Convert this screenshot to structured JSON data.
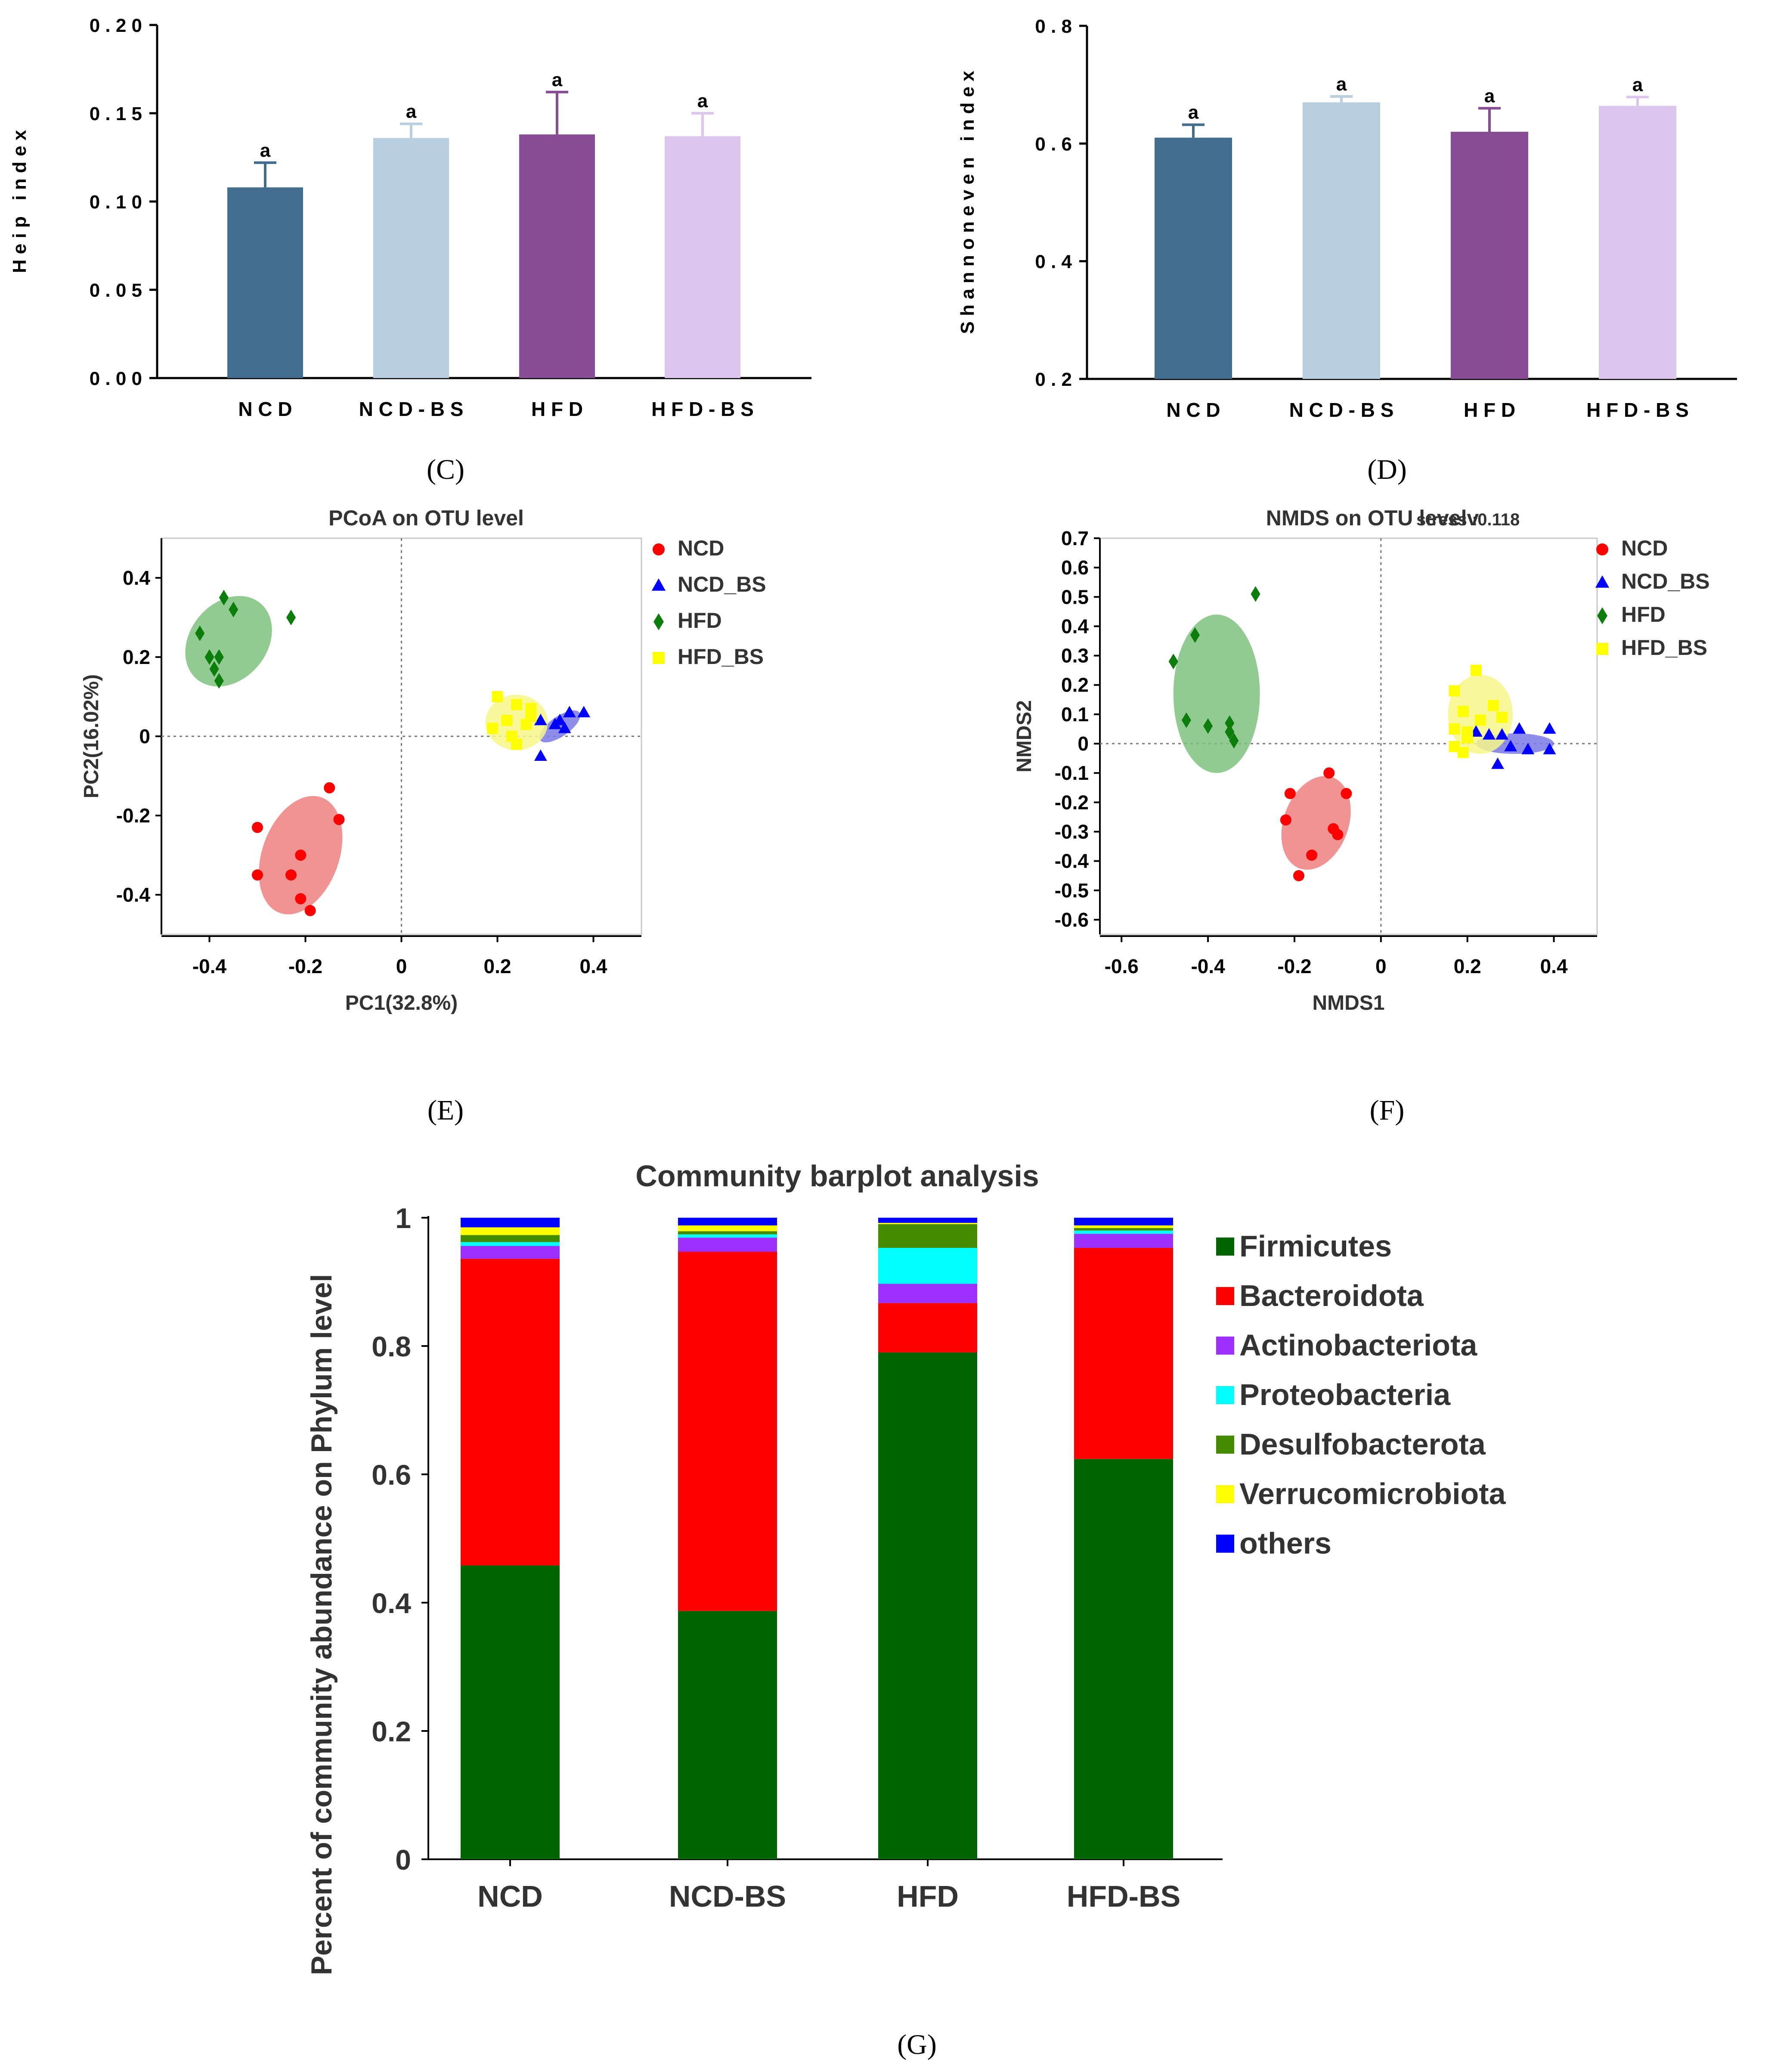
{
  "chart_data": [
    {
      "type": "bar",
      "panel_label": "(C)",
      "categories": [
        "N C D",
        "N C D - B S",
        "H F D",
        "H F D - B S"
      ],
      "values": [
        0.108,
        0.136,
        0.138,
        0.137
      ],
      "errors": [
        0.014,
        0.008,
        0.024,
        0.013
      ],
      "significance": [
        "a",
        "a",
        "a",
        "a"
      ],
      "colors": [
        "#426d8f",
        "#b9cfdf",
        "#884c95",
        "#dcc6ee"
      ],
      "ylabel": "H e i p   i n d e x",
      "ylim": [
        0,
        0.2
      ],
      "yticks": [
        0,
        0.05,
        0.1,
        0.15,
        0.2
      ],
      "ytick_labels": [
        "0 . 0 0",
        "0 . 0 5",
        "0 . 1 0",
        "0 . 1 5",
        "0 . 2 0"
      ]
    },
    {
      "type": "bar",
      "panel_label": "(D)",
      "categories": [
        "N C D",
        "N C D - B S",
        "H F D",
        "H F D - B S"
      ],
      "values": [
        0.61,
        0.67,
        0.62,
        0.664
      ],
      "errors": [
        0.022,
        0.01,
        0.04,
        0.015
      ],
      "significance": [
        "a",
        "a",
        "a",
        "a"
      ],
      "colors": [
        "#426d8f",
        "#b9cfdf",
        "#884c95",
        "#dcc6ee"
      ],
      "ylabel": "S h a n n o n e v e n   i n d e x",
      "ylim": [
        0.2,
        0.8
      ],
      "yticks": [
        0.2,
        0.4,
        0.6,
        0.8
      ],
      "ytick_labels": [
        "0 . 2",
        "0 . 4",
        "0 . 6",
        "0 . 8"
      ]
    },
    {
      "type": "scatter",
      "panel_label": "(E)",
      "title": "PCoA on OTU level",
      "xlabel": "PC1(32.8%)",
      "ylabel": "PC2(16.02%)",
      "xlim": [
        -0.5,
        0.5
      ],
      "ylim": [
        -0.5,
        0.5
      ],
      "xticks": [
        -0.4,
        -0.2,
        0,
        0.2,
        0.4
      ],
      "xtick_labels": [
        "-0.4",
        "-0.2",
        "0",
        "0.2",
        "0.4"
      ],
      "yticks": [
        -0.4,
        -0.2,
        0,
        0.2,
        0.4
      ],
      "ytick_labels": [
        "-0.4",
        "-0.2",
        "0",
        "0.2",
        "0.4"
      ],
      "series": [
        {
          "name": "NCD",
          "color": "#ff0000",
          "fill": "#f08080",
          "marker": "circle",
          "points": [
            [
              -0.15,
              -0.13
            ],
            [
              -0.13,
              -0.21
            ],
            [
              -0.3,
              -0.23
            ],
            [
              -0.21,
              -0.3
            ],
            [
              -0.3,
              -0.35
            ],
            [
              -0.23,
              -0.35
            ],
            [
              -0.21,
              -0.41
            ],
            [
              -0.19,
              -0.44
            ]
          ],
          "ellipse": {
            "cx": -0.21,
            "cy": -0.3,
            "rx": 0.08,
            "ry": 0.155,
            "angle": 20
          }
        },
        {
          "name": "NCD_BS",
          "color": "#0000ff",
          "fill": "#7a7ae6",
          "marker": "triangle",
          "points": [
            [
              0.29,
              0.04
            ],
            [
              0.33,
              0.04
            ],
            [
              0.35,
              0.06
            ],
            [
              0.38,
              0.06
            ],
            [
              0.32,
              0.03
            ],
            [
              0.34,
              0.02
            ],
            [
              0.29,
              -0.05
            ]
          ],
          "ellipse": {
            "cx": 0.33,
            "cy": 0.025,
            "rx": 0.05,
            "ry": 0.025,
            "angle": -35
          }
        },
        {
          "name": "HFD",
          "color": "#0a7d0a",
          "fill": "#7fc27f",
          "marker": "diamond",
          "points": [
            [
              -0.37,
              0.35
            ],
            [
              -0.35,
              0.32
            ],
            [
              -0.23,
              0.3
            ],
            [
              -0.42,
              0.26
            ],
            [
              -0.4,
              0.2
            ],
            [
              -0.38,
              0.2
            ],
            [
              -0.39,
              0.17
            ],
            [
              -0.38,
              0.14
            ]
          ],
          "ellipse": {
            "cx": -0.36,
            "cy": 0.24,
            "rx": 0.08,
            "ry": 0.125,
            "angle": 40
          }
        },
        {
          "name": "HFD_BS",
          "color": "#ffff00",
          "fill": "#f7f78a",
          "marker": "square",
          "points": [
            [
              0.2,
              0.1
            ],
            [
              0.24,
              0.08
            ],
            [
              0.27,
              0.07
            ],
            [
              0.19,
              0.02
            ],
            [
              0.22,
              0.04
            ],
            [
              0.26,
              0.03
            ],
            [
              0.23,
              0
            ],
            [
              0.24,
              -0.02
            ],
            [
              0.27,
              0.05
            ]
          ],
          "ellipse": {
            "cx": 0.24,
            "cy": 0.035,
            "rx": 0.065,
            "ry": 0.07,
            "angle": 0
          }
        }
      ]
    },
    {
      "type": "scatter",
      "panel_label": "(F)",
      "title": "NMDS on OTU levelv",
      "subtitle": "stress :0.118",
      "xlabel": "NMDS1",
      "ylabel": "NMDS2",
      "xlim": [
        -0.65,
        0.5
      ],
      "ylim": [
        -0.65,
        0.7
      ],
      "xticks": [
        -0.6,
        -0.4,
        -0.2,
        0,
        0.2,
        0.4
      ],
      "xtick_labels": [
        "-0.6",
        "-0.4",
        "-0.2",
        "0",
        "0.2",
        "0.4"
      ],
      "yticks": [
        -0.6,
        -0.5,
        -0.4,
        -0.3,
        -0.2,
        -0.1,
        0,
        0.1,
        0.2,
        0.3,
        0.4,
        0.5,
        0.6,
        0.7
      ],
      "ytick_labels": [
        "-0.6",
        "-0.5",
        "-0.4",
        "-0.3",
        "-0.2",
        "-0.1",
        "0",
        "0.1",
        "0.2",
        "0.3",
        "0.4",
        "0.5",
        "0.6",
        "0.7"
      ],
      "series": [
        {
          "name": "NCD",
          "color": "#ff0000",
          "fill": "#f08080",
          "marker": "circle",
          "points": [
            [
              -0.12,
              -0.1
            ],
            [
              -0.21,
              -0.17
            ],
            [
              -0.08,
              -0.17
            ],
            [
              -0.22,
              -0.26
            ],
            [
              -0.11,
              -0.29
            ],
            [
              -0.1,
              -0.31
            ],
            [
              -0.16,
              -0.38
            ],
            [
              -0.19,
              -0.45
            ]
          ],
          "ellipse": {
            "cx": -0.15,
            "cy": -0.27,
            "rx": 0.075,
            "ry": 0.165,
            "angle": 20
          }
        },
        {
          "name": "NCD_BS",
          "color": "#0000ff",
          "fill": "#7a7ae6",
          "marker": "triangle",
          "points": [
            [
              0.22,
              0.04
            ],
            [
              0.25,
              0.03
            ],
            [
              0.28,
              0.03
            ],
            [
              0.32,
              0.05
            ],
            [
              0.39,
              0.05
            ],
            [
              0.3,
              -0.01
            ],
            [
              0.34,
              -0.02
            ],
            [
              0.39,
              -0.02
            ],
            [
              0.27,
              -0.07
            ]
          ],
          "ellipse": {
            "cx": 0.31,
            "cy": 0,
            "rx": 0.09,
            "ry": 0.035,
            "angle": 0
          }
        },
        {
          "name": "HFD",
          "color": "#0a7d0a",
          "fill": "#7fc27f",
          "marker": "diamond",
          "points": [
            [
              -0.29,
              0.51
            ],
            [
              -0.43,
              0.37
            ],
            [
              -0.48,
              0.28
            ],
            [
              -0.45,
              0.08
            ],
            [
              -0.4,
              0.06
            ],
            [
              -0.35,
              0.07
            ],
            [
              -0.35,
              0.04
            ],
            [
              -0.34,
              0.01
            ]
          ],
          "ellipse": {
            "cx": -0.38,
            "cy": 0.17,
            "rx": 0.1,
            "ry": 0.27,
            "angle": 0
          }
        },
        {
          "name": "HFD_BS",
          "color": "#ffff00",
          "fill": "#f7f78a",
          "marker": "square",
          "points": [
            [
              0.22,
              0.25
            ],
            [
              0.17,
              0.18
            ],
            [
              0.26,
              0.13
            ],
            [
              0.19,
              0.11
            ],
            [
              0.23,
              0.08
            ],
            [
              0.28,
              0.09
            ],
            [
              0.17,
              0.05
            ],
            [
              0.2,
              0.04
            ],
            [
              0.17,
              -0.01
            ],
            [
              0.19,
              -0.03
            ],
            [
              0.2,
              0.02
            ]
          ],
          "ellipse": {
            "cx": 0.23,
            "cy": 0.1,
            "rx": 0.075,
            "ry": 0.135,
            "angle": 0
          }
        }
      ]
    },
    {
      "type": "bar",
      "stacked": true,
      "panel_label": "(G)",
      "title": "Community barplot analysis",
      "ylabel": "Percent of community abundance on Phylum level",
      "categories": [
        "NCD",
        "NCD-BS",
        "HFD",
        "HFD-BS"
      ],
      "ylim": [
        0,
        1
      ],
      "yticks": [
        0,
        0.2,
        0.4,
        0.6,
        0.8,
        1
      ],
      "ytick_labels": [
        "0",
        "0.2",
        "0.4",
        "0.6",
        "0.8",
        "1"
      ],
      "series": [
        {
          "name": "Firmicutes",
          "color": "#006400",
          "values": [
            0.458,
            0.387,
            0.79,
            0.624
          ]
        },
        {
          "name": "Bacteroidota",
          "color": "#ff0000",
          "values": [
            0.478,
            0.56,
            0.077,
            0.329
          ]
        },
        {
          "name": "Actinobacteriota",
          "color": "#9b30ff",
          "values": [
            0.02,
            0.022,
            0.03,
            0.022
          ]
        },
        {
          "name": "Proteobacteria",
          "color": "#00ffff",
          "values": [
            0.006,
            0.005,
            0.056,
            0.005
          ]
        },
        {
          "name": "Desulfobacterota",
          "color": "#458b00",
          "values": [
            0.011,
            0.005,
            0.037,
            0.004
          ]
        },
        {
          "name": "Verrucomicrobiota",
          "color": "#ffff00",
          "values": [
            0.012,
            0.009,
            0.002,
            0.004
          ]
        },
        {
          "name": "others",
          "color": "#0000ff",
          "values": [
            0.015,
            0.012,
            0.008,
            0.012
          ]
        }
      ]
    }
  ]
}
